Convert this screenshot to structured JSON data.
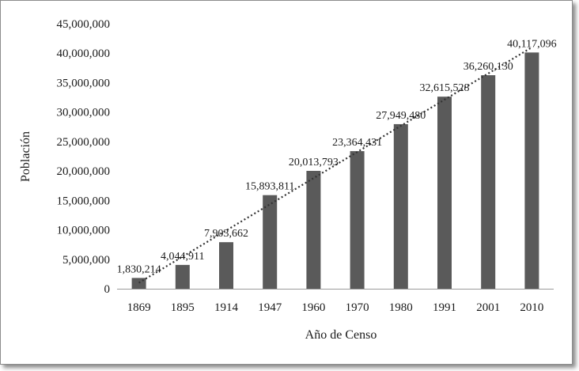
{
  "chart_data": {
    "type": "bar",
    "title": "",
    "xlabel": "Año  de Censo",
    "ylabel": "Población",
    "categories": [
      "1869",
      "1895",
      "1914",
      "1947",
      "1960",
      "1970",
      "1980",
      "1991",
      "2001",
      "2010"
    ],
    "values": [
      1830214,
      4044911,
      7903662,
      15893811,
      20013793,
      23364431,
      27949480,
      32615528,
      36260130,
      40117096
    ],
    "data_labels": [
      "1,830,214",
      "4,044,911",
      "7,903,662",
      "15,893,811",
      "20,013,793",
      "23,364,431",
      "27,949,480",
      "32,615,528",
      "36,260,130",
      "40,117,096"
    ],
    "ylim": [
      0,
      45000000
    ],
    "yticks": [
      0,
      5000000,
      10000000,
      15000000,
      20000000,
      25000000,
      30000000,
      35000000,
      40000000,
      45000000
    ],
    "ytick_labels": [
      "0",
      "5,000,000",
      "10,000,000",
      "15,000,000",
      "20,000,000",
      "25,000,000",
      "30,000,000",
      "35,000,000",
      "40,000,000",
      "45,000,000"
    ],
    "grid": false,
    "legend": "none",
    "trendline": {
      "type": "linear",
      "style": "dotted"
    },
    "bar_color": "#5a5a5a"
  }
}
